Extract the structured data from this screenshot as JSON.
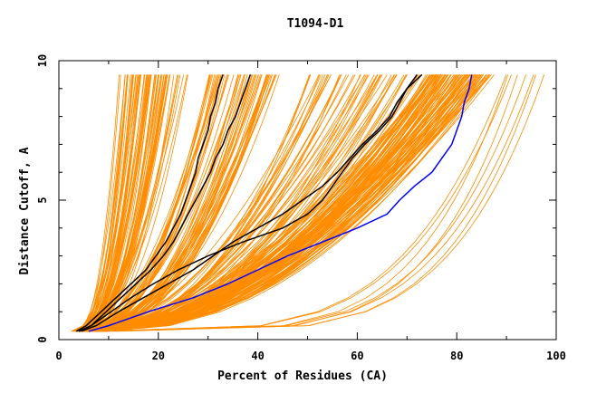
{
  "chart_data": {
    "type": "line",
    "title": "T1094-D1",
    "xlabel": "Percent of Residues (CA)",
    "ylabel": "Distance Cutoff, A",
    "xlim": [
      0,
      100
    ],
    "ylim": [
      0,
      10
    ],
    "x_ticks": [
      "0",
      "20",
      "40",
      "60",
      "80",
      "100"
    ],
    "y_ticks": [
      "0",
      "5",
      "10"
    ],
    "grid": false,
    "legend": "none",
    "colors": {
      "background_models": "#ff8c00",
      "highlight_black": "#000000",
      "highlight_blue": "#0000ff",
      "axes": "#000000"
    },
    "y_levels": [
      0.3,
      0.5,
      1.0,
      1.5,
      2.0,
      2.5,
      3.0,
      3.5,
      4.0,
      4.5,
      5.0,
      5.5,
      6.0,
      6.5,
      7.0,
      7.5,
      8.0,
      8.5,
      9.0,
      9.5
    ],
    "highlight_series": [
      {
        "color": "#000000",
        "x": [
          3.5,
          5.5,
          8.5,
          11.5,
          14.5,
          17.5,
          19.5,
          21.5,
          23.0,
          24.5,
          25.5,
          26.5,
          27.5,
          28.0,
          29.0,
          30.0,
          30.5,
          31.5,
          32.0,
          33.0
        ]
      },
      {
        "color": "#000000",
        "x": [
          4.0,
          6.5,
          9.5,
          12.5,
          15.5,
          18.5,
          21.0,
          23.0,
          24.5,
          26.0,
          27.5,
          29.0,
          30.5,
          31.5,
          33.0,
          34.0,
          35.5,
          36.5,
          37.5,
          38.5
        ]
      },
      {
        "color": "#000000",
        "x": [
          4.5,
          7.5,
          12.0,
          17.0,
          22.0,
          27.0,
          31.0,
          35.0,
          40.0,
          45.0,
          49.0,
          53.0,
          56.0,
          58.5,
          61.0,
          64.0,
          66.5,
          68.0,
          70.0,
          73.0
        ]
      },
      {
        "color": "#000000",
        "x": [
          4.0,
          6.5,
          10.5,
          14.5,
          19.0,
          24.0,
          30.0,
          37.0,
          45.0,
          50.0,
          53.0,
          55.0,
          57.0,
          59.0,
          61.5,
          64.5,
          67.0,
          68.5,
          70.0,
          72.0
        ]
      },
      {
        "color": "#0000ff",
        "x": [
          6.0,
          10.0,
          18.0,
          27.0,
          34.0,
          40.0,
          46.0,
          53.0,
          60.0,
          66.0,
          68.5,
          71.5,
          75.0,
          77.0,
          79.0,
          80.0,
          81.0,
          81.5,
          82.5,
          83.0
        ]
      }
    ]
  }
}
